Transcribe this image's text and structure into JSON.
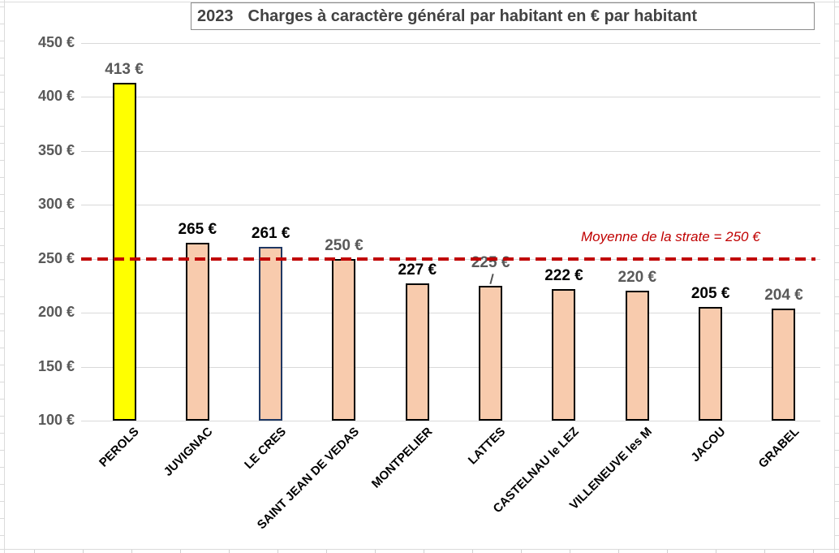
{
  "chart_title": {
    "year": "2023",
    "text": "Charges à caractère général par habitant en € par habitant"
  },
  "chart_data": {
    "type": "bar",
    "title": "2023  Charges à caractère général par habitant en € par habitant",
    "categories": [
      "PEROLS",
      "JUVIGNAC",
      "LE CRES",
      "SAINT JEAN DE VEDAS",
      "MONTPELIER",
      "LATTES",
      "CASTELNAU le LEZ",
      "VILLENEUVE les M",
      "JACOU",
      "GRABEL"
    ],
    "values": [
      413,
      265,
      261,
      250,
      227,
      225,
      222,
      220,
      205,
      204
    ],
    "data_labels": [
      "413 €",
      "265 €",
      "261 €",
      "250 €",
      "227 €",
      "225 €",
      "222 €",
      "220 €",
      "205 €",
      "204 €"
    ],
    "data_label_colors": [
      "#595959",
      "#000000",
      "#000000",
      "#595959",
      "#000000",
      "#595959",
      "#000000",
      "#595959",
      "#000000",
      "#595959"
    ],
    "bar_fill_colors": [
      "#FFFF00",
      "#F8CBAD",
      "#F8CBAD",
      "#F8CBAD",
      "#F8CBAD",
      "#F8CBAD",
      "#F8CBAD",
      "#F8CBAD",
      "#F8CBAD",
      "#F8CBAD"
    ],
    "bar_border_colors": [
      "#000000",
      "#000000",
      "#1F3864",
      "#000000",
      "#000000",
      "#000000",
      "#000000",
      "#000000",
      "#000000",
      "#000000"
    ],
    "xlabel": "",
    "ylabel": "",
    "ylim": [
      100,
      450
    ],
    "ytick_values": [
      100,
      150,
      200,
      250,
      300,
      350,
      400,
      450
    ],
    "ytick_labels": [
      "100 €",
      "150 €",
      "200 €",
      "250 €",
      "300 €",
      "350 €",
      "400 €",
      "450 €"
    ],
    "grid": true,
    "legend": false,
    "reference_line": {
      "value": 250,
      "label": "Moyenne de la strate = 250 €",
      "color": "#C00000",
      "style": "dashed"
    }
  },
  "colors": {
    "highlight_bar_fill": "#FFFF00",
    "bar_fill": "#F8CBAD",
    "bar_border": "#000000",
    "special_bar_border": "#1F3864",
    "chart_grid": "#D9D9D9",
    "axis_text": "#595959",
    "reference_red": "#C00000",
    "title_text": "#424242",
    "title_border": "#8C8C8C",
    "sheet_grid": "#DBDBDB"
  }
}
